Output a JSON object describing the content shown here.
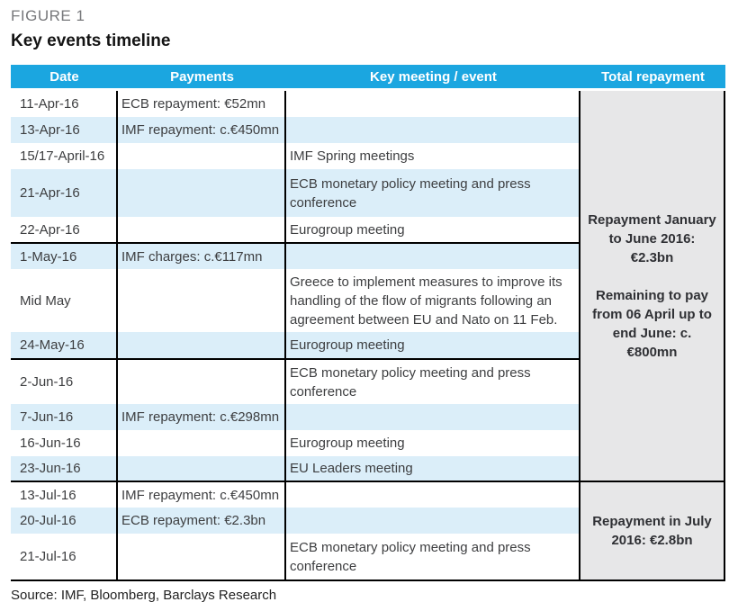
{
  "figure_label": "FIGURE 1",
  "title": "Key events timeline",
  "source": "Source: IMF, Bloomberg, Barclays Research",
  "colors": {
    "header_bg": "#1BA6E0",
    "alt_row_bg": "#DBEEF9",
    "summary_bg": "#E7E7E8",
    "border": "#000000"
  },
  "table": {
    "headers": {
      "date": "Date",
      "payments": "Payments",
      "event": "Key meeting / event",
      "total": "Total repayment"
    },
    "rows": [
      {
        "date": "11-Apr-16",
        "payment": "ECB repayment: €52mn",
        "event": ""
      },
      {
        "date": "13-Apr-16",
        "payment": "IMF repayment: c.€450mn",
        "event": ""
      },
      {
        "date": "15/17-April-16",
        "payment": "",
        "event": "IMF Spring meetings"
      },
      {
        "date": "21-Apr-16",
        "payment": "",
        "event": "ECB monetary policy meeting and press conference"
      },
      {
        "date": "22-Apr-16",
        "payment": "",
        "event": "Eurogroup meeting"
      },
      {
        "date": "1-May-16",
        "payment": "IMF charges: c.€117mn",
        "event": ""
      },
      {
        "date": "Mid May",
        "payment": "",
        "event": "Greece to implement measures to improve its handling of the flow of migrants following an agreement between EU and Nato on 11 Feb."
      },
      {
        "date": "24-May-16",
        "payment": "",
        "event": "Eurogroup meeting"
      },
      {
        "date": "2-Jun-16",
        "payment": "",
        "event": "ECB monetary policy meeting and press conference"
      },
      {
        "date": "7-Jun-16",
        "payment": "IMF repayment: c.€298mn",
        "event": ""
      },
      {
        "date": "16-Jun-16",
        "payment": "",
        "event": "Eurogroup meeting"
      },
      {
        "date": "23-Jun-16",
        "payment": "",
        "event": "EU Leaders meeting"
      },
      {
        "date": "13-Jul-16",
        "payment": "IMF repayment: c.€450mn",
        "event": ""
      },
      {
        "date": "20-Jul-16",
        "payment": "ECB repayment: €2.3bn",
        "event": ""
      },
      {
        "date": "21-Jul-16",
        "payment": "",
        "event": "ECB monetary policy meeting and press conference"
      }
    ],
    "summaries": [
      {
        "line1": "Repayment January to June 2016: €2.3bn",
        "line2": "Remaining to pay from 06 April up to end June: c. €800mn"
      },
      {
        "line1": "Repayment in July 2016: €2.8bn",
        "line2": ""
      }
    ]
  }
}
